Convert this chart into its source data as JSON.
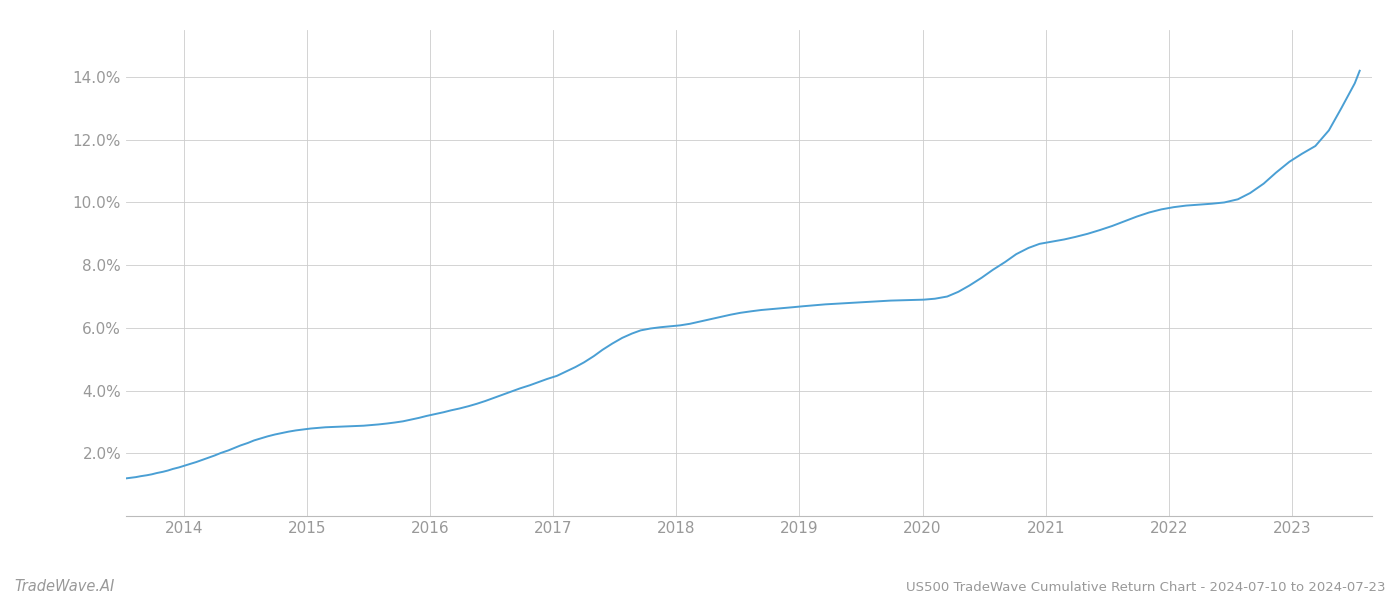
{
  "title": "US500 TradeWave Cumulative Return Chart - 2024-07-10 to 2024-07-23",
  "watermark": "TradeWave.AI",
  "line_color": "#4a9fd4",
  "background_color": "#ffffff",
  "grid_color": "#cccccc",
  "x_years": [
    2014,
    2015,
    2016,
    2017,
    2018,
    2019,
    2020,
    2021,
    2022,
    2023
  ],
  "x_data": [
    2013.53,
    2013.57,
    2013.61,
    2013.65,
    2013.7,
    2013.74,
    2013.78,
    2013.83,
    2013.87,
    2013.91,
    2013.96,
    2014.0,
    2014.05,
    2014.1,
    2014.15,
    2014.2,
    2014.25,
    2014.3,
    2014.36,
    2014.41,
    2014.46,
    2014.52,
    2014.57,
    2014.63,
    2014.68,
    2014.74,
    2014.8,
    2014.85,
    2014.91,
    2014.97,
    2015.03,
    2015.09,
    2015.15,
    2015.21,
    2015.27,
    2015.33,
    2015.39,
    2015.46,
    2015.52,
    2015.58,
    2015.65,
    2015.71,
    2015.78,
    2015.84,
    2015.91,
    2015.97,
    2016.04,
    2016.11,
    2016.17,
    2016.24,
    2016.31,
    2016.38,
    2016.45,
    2016.52,
    2016.59,
    2016.66,
    2016.73,
    2016.81,
    2016.88,
    2016.95,
    2017.03,
    2017.1,
    2017.18,
    2017.25,
    2017.33,
    2017.4,
    2017.48,
    2017.56,
    2017.64,
    2017.71,
    2017.79,
    2017.87,
    2017.95,
    2018.03,
    2018.11,
    2018.19,
    2018.27,
    2018.36,
    2018.44,
    2018.52,
    2018.61,
    2018.69,
    2018.78,
    2018.86,
    2018.95,
    2019.03,
    2019.12,
    2019.21,
    2019.3,
    2019.38,
    2019.47,
    2019.56,
    2019.65,
    2019.74,
    2019.83,
    2019.92,
    2020.01,
    2020.1,
    2020.2,
    2020.29,
    2020.38,
    2020.48,
    2020.57,
    2020.67,
    2020.76,
    2020.86,
    2020.95,
    2021.05,
    2021.15,
    2021.24,
    2021.34,
    2021.44,
    2021.54,
    2021.64,
    2021.74,
    2021.84,
    2021.94,
    2022.04,
    2022.14,
    2022.25,
    2022.35,
    2022.45,
    2022.56,
    2022.66,
    2022.77,
    2022.87,
    2022.98,
    2023.08,
    2023.19,
    2023.3,
    2023.4,
    2023.51,
    2023.55
  ],
  "y_data": [
    1.2,
    1.22,
    1.24,
    1.27,
    1.3,
    1.33,
    1.37,
    1.41,
    1.45,
    1.5,
    1.55,
    1.6,
    1.66,
    1.72,
    1.79,
    1.86,
    1.93,
    2.01,
    2.09,
    2.17,
    2.25,
    2.33,
    2.41,
    2.48,
    2.54,
    2.6,
    2.65,
    2.69,
    2.73,
    2.76,
    2.79,
    2.81,
    2.83,
    2.84,
    2.85,
    2.86,
    2.87,
    2.88,
    2.9,
    2.92,
    2.95,
    2.98,
    3.02,
    3.07,
    3.13,
    3.19,
    3.25,
    3.31,
    3.37,
    3.43,
    3.5,
    3.58,
    3.67,
    3.77,
    3.87,
    3.97,
    4.07,
    4.17,
    4.27,
    4.37,
    4.47,
    4.6,
    4.75,
    4.9,
    5.1,
    5.3,
    5.5,
    5.68,
    5.82,
    5.92,
    5.98,
    6.02,
    6.05,
    6.08,
    6.13,
    6.2,
    6.27,
    6.35,
    6.42,
    6.48,
    6.53,
    6.57,
    6.6,
    6.63,
    6.66,
    6.69,
    6.72,
    6.75,
    6.77,
    6.79,
    6.81,
    6.83,
    6.85,
    6.87,
    6.88,
    6.89,
    6.9,
    6.93,
    7.0,
    7.15,
    7.35,
    7.6,
    7.85,
    8.1,
    8.35,
    8.55,
    8.68,
    8.75,
    8.82,
    8.9,
    9.0,
    9.12,
    9.25,
    9.4,
    9.55,
    9.68,
    9.78,
    9.85,
    9.9,
    9.93,
    9.96,
    10.0,
    10.1,
    10.3,
    10.6,
    10.95,
    11.3,
    11.55,
    11.8,
    12.3,
    13.0,
    13.8,
    14.2
  ],
  "ylim": [
    0.0,
    15.5
  ],
  "yticks": [
    2.0,
    4.0,
    6.0,
    8.0,
    10.0,
    12.0,
    14.0
  ],
  "xlim_left": 2013.53,
  "xlim_right": 2023.65,
  "title_fontsize": 9.5,
  "watermark_fontsize": 10.5,
  "tick_color": "#999999",
  "spine_color": "#bbbbbb",
  "tick_fontsize": 11
}
